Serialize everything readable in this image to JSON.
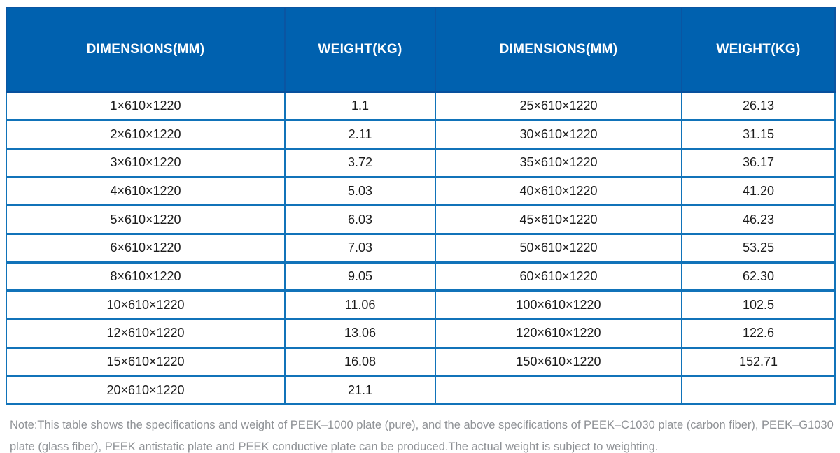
{
  "table": {
    "headers": [
      "DIMENSIONS(MM)",
      "WEIGHT(KG)",
      "DIMENSIONS(MM)",
      "WEIGHT(KG)"
    ],
    "rows": [
      [
        "1×610×1220",
        "1.1",
        "25×610×1220",
        "26.13"
      ],
      [
        "2×610×1220",
        "2.11",
        "30×610×1220",
        "31.15"
      ],
      [
        "3×610×1220",
        "3.72",
        "35×610×1220",
        "36.17"
      ],
      [
        "4×610×1220",
        "5.03",
        "40×610×1220",
        "41.20"
      ],
      [
        "5×610×1220",
        "6.03",
        "45×610×1220",
        "46.23"
      ],
      [
        "6×610×1220",
        "7.03",
        "50×610×1220",
        "53.25"
      ],
      [
        "8×610×1220",
        "9.05",
        "60×610×1220",
        "62.30"
      ],
      [
        "10×610×1220",
        "11.06",
        "100×610×1220",
        "102.5"
      ],
      [
        "12×610×1220",
        "13.06",
        "120×610×1220",
        "122.6"
      ],
      [
        "15×610×1220",
        "16.08",
        "150×610×1220",
        "152.71"
      ],
      [
        "20×610×1220",
        "21.1",
        "",
        ""
      ]
    ]
  },
  "note": {
    "text": "Note:This table shows the specifications and weight of PEEK–1000 plate (pure), and the above specifications of PEEK–C1030 plate (carbon fiber), PEEK–G1030 plate (glass fiber), PEEK antistatic plate and PEEK conductive plate can be produced.The actual weight is subject to weighting."
  },
  "colors": {
    "header_bg": "#0061af",
    "header_border": "#0a55a2",
    "body_border": "#1173b9",
    "body_text": "#1b1b1b",
    "note_text": "#8f9296"
  }
}
